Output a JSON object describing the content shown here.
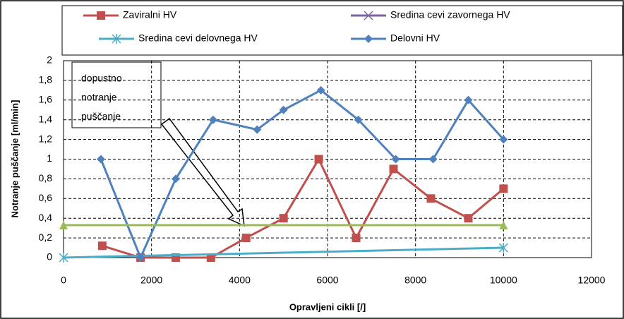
{
  "chart_data": {
    "type": "line",
    "xlabel": "Opravljeni cikli [/]",
    "ylabel": "Notranje puščanje  [ml/min]",
    "annotation": [
      "dopustno",
      "notranje",
      "puščanje"
    ],
    "xlim": [
      0,
      12000
    ],
    "xticks": [
      0,
      2000,
      4000,
      6000,
      8000,
      10000,
      12000
    ],
    "ylim": [
      0,
      2
    ],
    "yticks": [
      0,
      {
        "value": 0.2,
        "label": "0,2"
      },
      {
        "value": 0.4,
        "label": "0,4"
      },
      {
        "value": 0.6,
        "label": "0,6"
      },
      {
        "value": 0.8,
        "label": "0,8"
      },
      1,
      {
        "value": 1.2,
        "label": "1,2"
      },
      {
        "value": 1.4,
        "label": "1,4"
      },
      {
        "value": 1.6,
        "label": "1,6"
      },
      {
        "value": 1.8,
        "label": "1,8"
      },
      2
    ],
    "grid": true,
    "series": [
      {
        "name": "Zaviralni HV",
        "color": "#c0504d",
        "marker": "square",
        "x": [
          880,
          1750,
          2550,
          3350,
          4150,
          5000,
          5800,
          6650,
          7500,
          8350,
          9200,
          10000
        ],
        "values": [
          0.12,
          0,
          0,
          0,
          0.2,
          0.4,
          1.0,
          0.2,
          0.9,
          0.6,
          0.4,
          0.7
        ]
      },
      {
        "name": "Sredina cevi zavornega HV",
        "color": "#8064a2",
        "marker": "x",
        "x": [],
        "values": []
      },
      {
        "name": "Sredina cevi delovnega HV",
        "color": "#4bacc6",
        "marker": "star",
        "x": [
          0,
          10000
        ],
        "values": [
          0,
          0.1
        ]
      },
      {
        "name": "Delovni HV",
        "color": "#4f81bd",
        "marker": "diamond",
        "x": [
          850,
          1750,
          2550,
          3400,
          4400,
          5000,
          5850,
          6700,
          7550,
          8400,
          9200,
          10000
        ],
        "values": [
          1.0,
          0,
          0.8,
          1.4,
          1.3,
          1.5,
          1.7,
          1.4,
          1.0,
          1.0,
          1.6,
          1.2
        ]
      },
      {
        "color": "#9bbb59",
        "marker": "triangle",
        "x": [
          0,
          10000
        ],
        "values": [
          0.33,
          0.33
        ]
      }
    ]
  }
}
